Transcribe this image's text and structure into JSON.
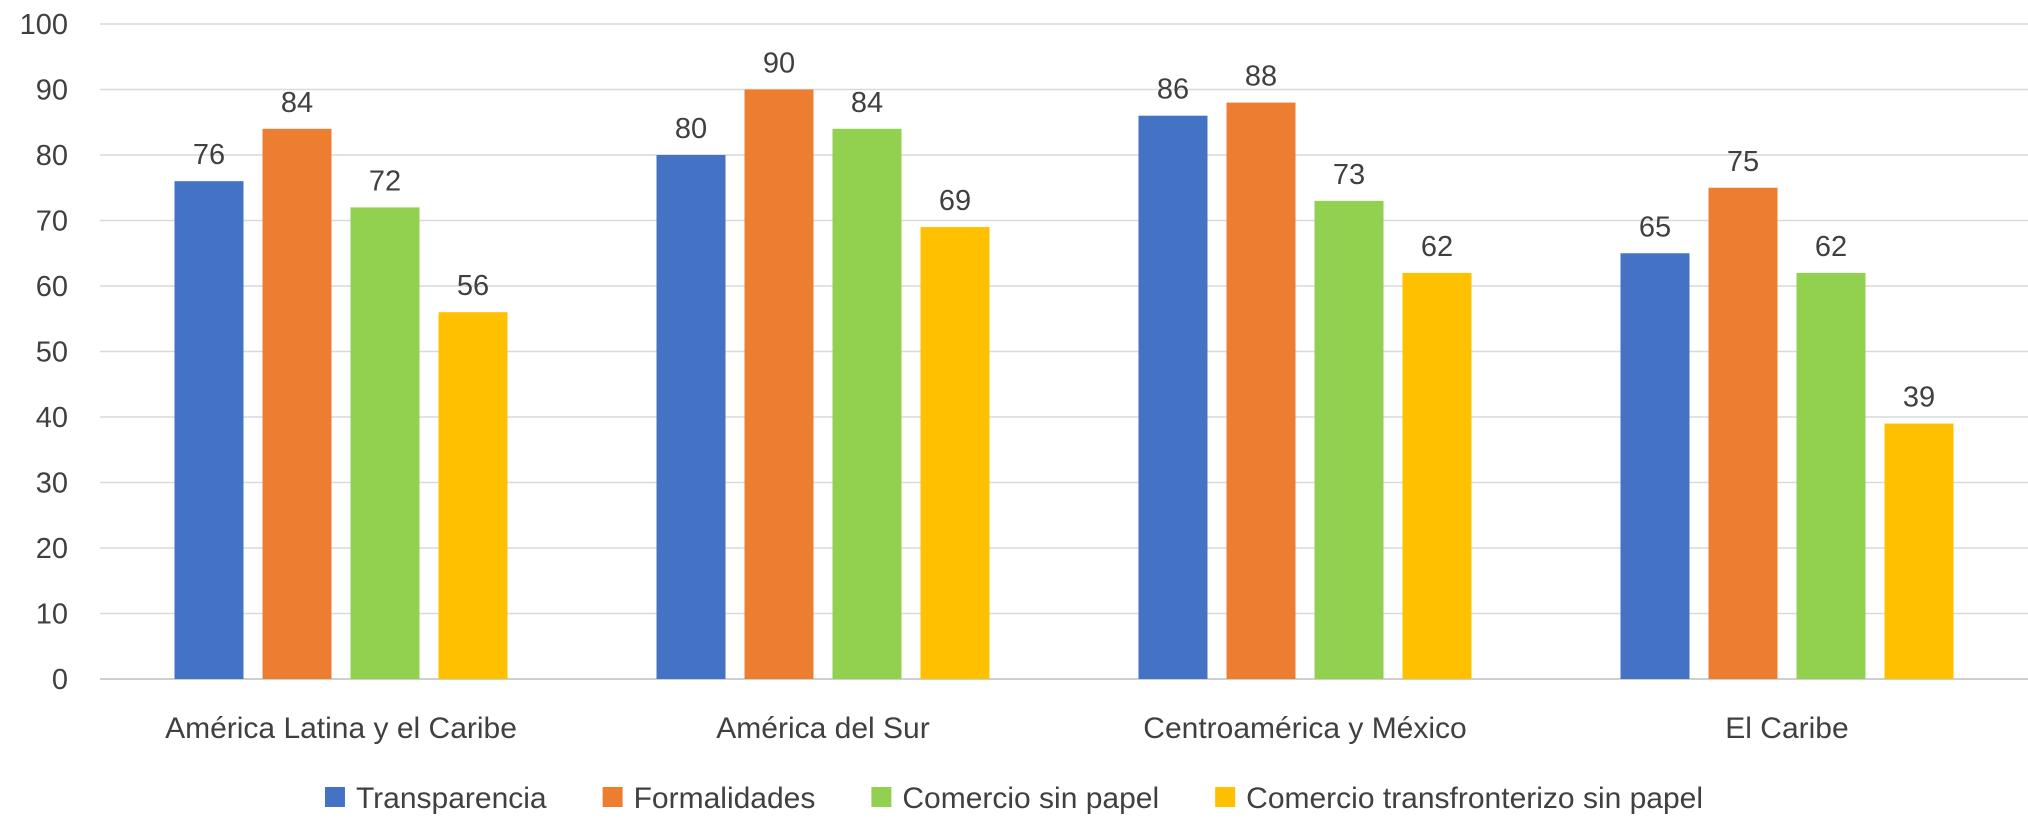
{
  "chart_data": {
    "type": "bar",
    "categories": [
      "América Latina y el Caribe",
      "América del Sur",
      "Centroamérica y México",
      "El Caribe"
    ],
    "series": [
      {
        "name": "Transparencia",
        "color": "#4472C4",
        "values": [
          76,
          80,
          86,
          65
        ]
      },
      {
        "name": "Formalidades",
        "color": "#ED7D31",
        "values": [
          84,
          90,
          88,
          75
        ]
      },
      {
        "name": "Comercio sin papel",
        "color": "#92D050",
        "values": [
          72,
          84,
          73,
          62
        ]
      },
      {
        "name": "Comercio transfronterizo sin papel",
        "color": "#FFC000",
        "values": [
          56,
          69,
          62,
          39
        ]
      }
    ],
    "ylim": [
      0,
      100
    ],
    "yticks": [
      0,
      10,
      20,
      30,
      40,
      50,
      60,
      70,
      80,
      90,
      100
    ],
    "grid": true,
    "legend_position": "bottom",
    "data_labels": true
  }
}
